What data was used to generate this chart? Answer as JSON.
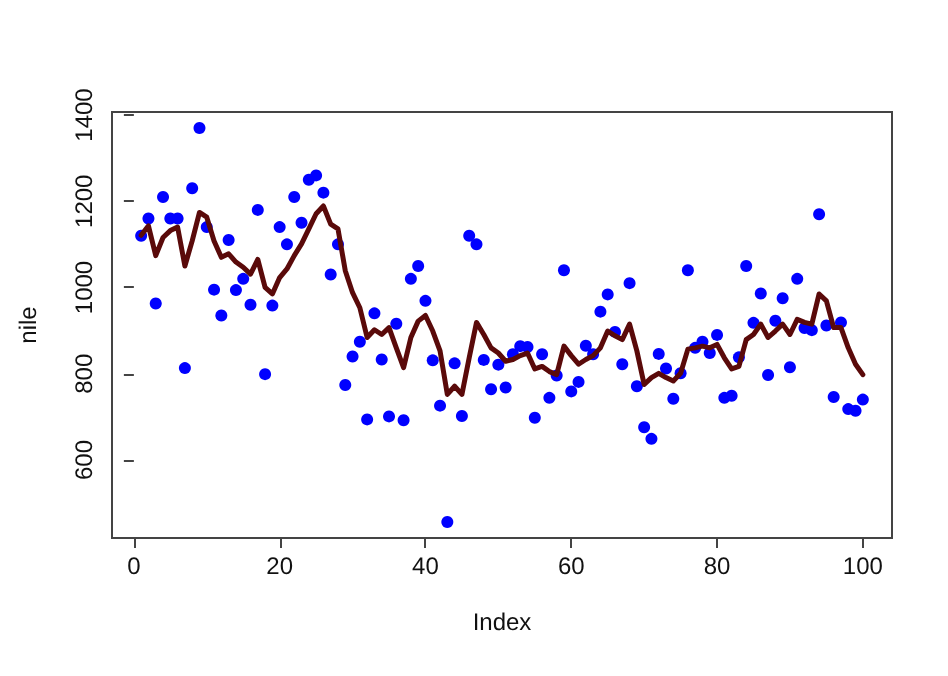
{
  "chart_data": {
    "type": "scatter",
    "xlabel": "Index",
    "ylabel": "nile",
    "x": [
      1,
      2,
      3,
      4,
      5,
      6,
      7,
      8,
      9,
      10,
      11,
      12,
      13,
      14,
      15,
      16,
      17,
      18,
      19,
      20,
      21,
      22,
      23,
      24,
      25,
      26,
      27,
      28,
      29,
      30,
      31,
      32,
      33,
      34,
      35,
      36,
      37,
      38,
      39,
      40,
      41,
      42,
      43,
      44,
      45,
      46,
      47,
      48,
      49,
      50,
      51,
      52,
      53,
      54,
      55,
      56,
      57,
      58,
      59,
      60,
      61,
      62,
      63,
      64,
      65,
      66,
      67,
      68,
      69,
      70,
      71,
      72,
      73,
      74,
      75,
      76,
      77,
      78,
      79,
      80,
      81,
      82,
      83,
      84,
      85,
      86,
      87,
      88,
      89,
      90,
      91,
      92,
      93,
      94,
      95,
      96,
      97,
      98,
      99,
      100
    ],
    "xlim": [
      -3,
      104
    ],
    "xticks": [
      0,
      20,
      40,
      60,
      80,
      100
    ],
    "ylim": [
      419,
      1407
    ],
    "yticks": [
      600,
      800,
      1000,
      1200,
      1400
    ],
    "grid": false,
    "series": [
      {
        "marker": "circle",
        "color": "#0000ff",
        "values": [
          1120,
          1160,
          963,
          1210,
          1160,
          1160,
          813,
          1230,
          1370,
          1140,
          995,
          935,
          1110,
          994,
          1020,
          960,
          1180,
          799,
          958,
          1140,
          1100,
          1210,
          1150,
          1250,
          1260,
          1220,
          1030,
          1100,
          774,
          840,
          874,
          694,
          940,
          833,
          701,
          916,
          692,
          1020,
          1050,
          969,
          831,
          726,
          456,
          824,
          702,
          1120,
          1100,
          832,
          764,
          821,
          768,
          845,
          864,
          862,
          698,
          845,
          744,
          796,
          1040,
          759,
          781,
          865,
          845,
          944,
          984,
          897,
          822,
          1010,
          771,
          676,
          649,
          846,
          812,
          742,
          801,
          1040,
          860,
          874,
          848,
          890,
          744,
          749,
          838,
          1050,
          918,
          986,
          797,
          923,
          975,
          815,
          1020,
          906,
          901,
          1170,
          912,
          746,
          919,
          718,
          714,
          740
        ]
      },
      {
        "type": "line",
        "marker": "none",
        "line_style": "solid",
        "color": "#5a0a0a",
        "values": [
          1121,
          1143,
          1074,
          1116,
          1132,
          1140,
          1050,
          1108,
          1174,
          1163,
          1108,
          1070,
          1078,
          1059,
          1047,
          1031,
          1065,
          1000,
          985,
          1023,
          1043,
          1074,
          1101,
          1136,
          1171,
          1189,
          1147,
          1136,
          1039,
          988,
          953,
          884,
          902,
          891,
          907,
          860,
          814,
          884,
          922,
          935,
          899,
          853,
          752,
          771,
          752,
          837,
          919,
          891,
          860,
          848,
          829,
          833,
          842,
          848,
          811,
          817,
          805,
          798,
          864,
          842,
          822,
          833,
          842,
          860,
          899,
          888,
          879,
          915,
          853,
          775,
          791,
          801,
          791,
          783,
          801,
          857,
          860,
          864,
          860,
          868,
          837,
          811,
          817,
          879,
          891,
          915,
          884,
          899,
          915,
          891,
          926,
          919,
          915,
          985,
          969,
          907,
          907,
          860,
          822,
          798
        ]
      }
    ]
  }
}
